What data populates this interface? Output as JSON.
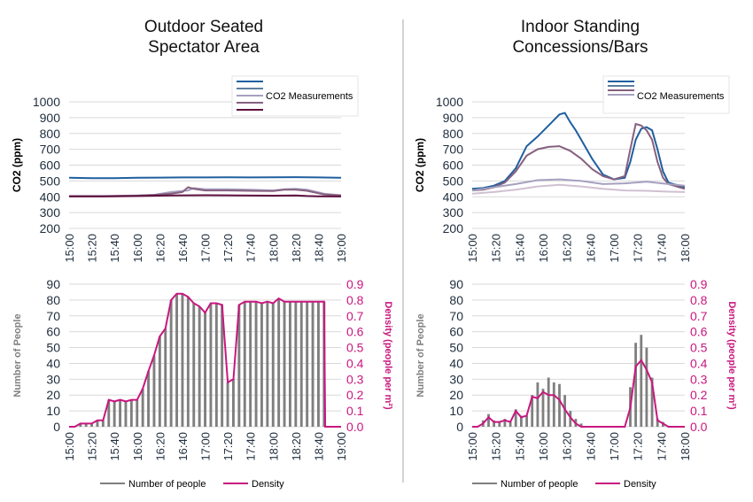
{
  "titles": {
    "left_line1": "Outdoor Seated",
    "left_line2": "Spectator Area",
    "right_line1": "Indoor Standing",
    "right_line2": "Concessions/Bars"
  },
  "colors": {
    "text": "#1f2d3d",
    "grid": "#d9d9d9",
    "bar": "#7f7f7f",
    "density": "#c8177f",
    "axis_gray": "#808080",
    "co2_dark_blue": "#1f5f9f",
    "co2_steel": "#5b7f9f",
    "co2_mauve": "#86607f",
    "co2_lavender": "#a6a0c0",
    "co2_plum": "#5e0f3f",
    "divider": "#a6a6a6"
  },
  "chart_data": [
    {
      "id": "left-co2",
      "type": "line",
      "title": "",
      "ylabel": "CO2 (ppm)",
      "ylim": [
        200,
        1000
      ],
      "yticks": [
        "200",
        "300",
        "400",
        "500",
        "600",
        "700",
        "800",
        "900",
        "1000"
      ],
      "x_ticks": [
        "15:00",
        "15:20",
        "15:40",
        "16:00",
        "16:20",
        "16:40",
        "17:00",
        "17:20",
        "17:40",
        "18:00",
        "18:20",
        "18:40",
        "19:00"
      ],
      "xlim": [
        0,
        240
      ],
      "legend": {
        "text": "CO2 Measurements",
        "placement": "top-right"
      },
      "series": [
        {
          "color": "#1f5f9f",
          "x": [
            0,
            20,
            40,
            60,
            80,
            100,
            120,
            140,
            160,
            180,
            200,
            220,
            240
          ],
          "y": [
            520,
            518,
            518,
            520,
            521,
            522,
            522,
            523,
            522,
            523,
            524,
            522,
            520
          ]
        },
        {
          "color": "#a6a0c0",
          "x": [
            0,
            30,
            60,
            75,
            90,
            105,
            110,
            120,
            140,
            160,
            180,
            190,
            200,
            210,
            225,
            240
          ],
          "y": [
            405,
            405,
            408,
            412,
            430,
            440,
            455,
            448,
            448,
            445,
            440,
            448,
            450,
            445,
            420,
            410
          ]
        },
        {
          "color": "#86607f",
          "x": [
            0,
            30,
            60,
            75,
            90,
            100,
            105,
            110,
            120,
            140,
            160,
            180,
            190,
            200,
            210,
            225,
            240
          ],
          "y": [
            404,
            404,
            407,
            412,
            420,
            430,
            460,
            450,
            440,
            440,
            438,
            436,
            445,
            445,
            438,
            415,
            408
          ]
        },
        {
          "color": "#5e0f3f",
          "x": [
            0,
            30,
            60,
            90,
            120,
            150,
            180,
            200,
            210,
            220,
            240
          ],
          "y": [
            402,
            402,
            405,
            408,
            410,
            408,
            407,
            408,
            405,
            403,
            402
          ]
        }
      ]
    },
    {
      "id": "right-co2",
      "type": "line",
      "title": "",
      "ylabel": "CO2 (ppm)",
      "ylim": [
        200,
        1000
      ],
      "yticks": [
        "200",
        "300",
        "400",
        "500",
        "600",
        "700",
        "800",
        "900",
        "1000"
      ],
      "x_ticks": [
        "15:00",
        "15:20",
        "15:40",
        "16:00",
        "16:20",
        "16:40",
        "17:00",
        "17:20",
        "17:40",
        "18:00"
      ],
      "xlim": [
        0,
        195
      ],
      "legend": {
        "text": "CO2 Measurements",
        "placement": "top-right"
      },
      "series": [
        {
          "color": "#1f5f9f",
          "x": [
            0,
            10,
            20,
            30,
            40,
            50,
            60,
            70,
            80,
            85,
            90,
            95,
            100,
            110,
            120,
            130,
            140,
            145,
            150,
            155,
            160,
            165,
            170,
            175,
            180,
            190,
            195
          ],
          "y": [
            450,
            455,
            470,
            500,
            580,
            720,
            780,
            850,
            920,
            930,
            870,
            820,
            760,
            640,
            540,
            510,
            520,
            620,
            760,
            830,
            840,
            820,
            700,
            560,
            490,
            470,
            460
          ]
        },
        {
          "color": "#86607f",
          "x": [
            0,
            10,
            20,
            30,
            40,
            50,
            60,
            70,
            80,
            90,
            100,
            110,
            120,
            130,
            140,
            145,
            150,
            155,
            160,
            165,
            170,
            175,
            180,
            190,
            195
          ],
          "y": [
            440,
            445,
            460,
            490,
            560,
            660,
            700,
            715,
            720,
            690,
            640,
            575,
            530,
            510,
            530,
            700,
            860,
            850,
            820,
            760,
            620,
            520,
            480,
            460,
            450
          ]
        },
        {
          "color": "#a6a0c0",
          "x": [
            0,
            20,
            40,
            60,
            80,
            100,
            120,
            140,
            160,
            180,
            195
          ],
          "y": [
            440,
            460,
            480,
            505,
            510,
            500,
            480,
            485,
            495,
            480,
            470
          ]
        },
        {
          "color": "#d0c0d0",
          "x": [
            0,
            20,
            40,
            60,
            80,
            100,
            120,
            140,
            160,
            180,
            195
          ],
          "y": [
            420,
            430,
            445,
            465,
            475,
            465,
            450,
            440,
            438,
            432,
            430
          ]
        }
      ]
    },
    {
      "id": "left-people",
      "type": "bar",
      "title": "",
      "ylabel": "Number of People",
      "y2label": "Density (people per m²)",
      "ylim": [
        0,
        90
      ],
      "y2lim": [
        0,
        0.9
      ],
      "yticks": [
        "0",
        "10",
        "20",
        "30",
        "40",
        "50",
        "60",
        "70",
        "80",
        "90"
      ],
      "y2ticks": [
        "0.0",
        "0.1",
        "0.2",
        "0.3",
        "0.4",
        "0.5",
        "0.6",
        "0.7",
        "0.8",
        "0.9"
      ],
      "x_ticks": [
        "15:00",
        "15:20",
        "15:40",
        "16:00",
        "16:20",
        "16:40",
        "17:00",
        "17:20",
        "17:40",
        "18:00",
        "18:20",
        "18:40",
        "19:00"
      ],
      "xlim": [
        0,
        240
      ],
      "bars": {
        "x": [
          5,
          10,
          15,
          20,
          25,
          30,
          35,
          40,
          45,
          50,
          55,
          60,
          65,
          70,
          75,
          80,
          85,
          90,
          95,
          100,
          105,
          110,
          115,
          120,
          125,
          130,
          135,
          140,
          145,
          150,
          155,
          160,
          165,
          170,
          175,
          180,
          185,
          190,
          195,
          200,
          205,
          210,
          215,
          220,
          225
        ],
        "y": [
          0,
          2,
          2,
          2,
          4,
          4,
          17,
          16,
          17,
          16,
          17,
          17,
          24,
          35,
          45,
          57,
          62,
          80,
          84,
          84,
          82,
          78,
          76,
          72,
          78,
          78,
          77,
          28,
          30,
          77,
          79,
          79,
          79,
          78,
          79,
          78,
          81,
          79,
          79,
          79,
          79,
          79,
          79,
          79,
          79
        ]
      },
      "density": {
        "x": [
          0,
          5,
          10,
          15,
          20,
          25,
          30,
          35,
          40,
          45,
          50,
          55,
          60,
          65,
          70,
          75,
          80,
          85,
          90,
          95,
          100,
          105,
          110,
          115,
          120,
          125,
          130,
          135,
          140,
          145,
          150,
          155,
          160,
          165,
          170,
          175,
          180,
          185,
          190,
          195,
          200,
          205,
          210,
          215,
          220,
          225,
          226,
          240
        ],
        "y": [
          0,
          0,
          0.02,
          0.02,
          0.02,
          0.04,
          0.04,
          0.17,
          0.16,
          0.17,
          0.16,
          0.17,
          0.17,
          0.24,
          0.35,
          0.45,
          0.57,
          0.62,
          0.8,
          0.84,
          0.84,
          0.82,
          0.78,
          0.76,
          0.72,
          0.78,
          0.78,
          0.77,
          0.28,
          0.3,
          0.77,
          0.79,
          0.79,
          0.79,
          0.78,
          0.79,
          0.78,
          0.81,
          0.79,
          0.79,
          0.79,
          0.79,
          0.79,
          0.79,
          0.79,
          0.79,
          0,
          0
        ]
      },
      "legend": [
        "Number of people",
        "Density"
      ]
    },
    {
      "id": "right-people",
      "type": "bar",
      "title": "",
      "ylabel": "Number of People",
      "y2label": "Density (people per m²)",
      "ylim": [
        0,
        90
      ],
      "y2lim": [
        0,
        0.9
      ],
      "yticks": [
        "0",
        "10",
        "20",
        "30",
        "40",
        "50",
        "60",
        "70",
        "80",
        "90"
      ],
      "y2ticks": [
        "0.0",
        "0.1",
        "0.2",
        "0.3",
        "0.4",
        "0.5",
        "0.6",
        "0.7",
        "0.8",
        "0.9"
      ],
      "x_ticks": [
        "15:00",
        "15:20",
        "15:40",
        "16:00",
        "16:20",
        "16:40",
        "17:00",
        "17:20",
        "17:40",
        "18:00"
      ],
      "xlim": [
        0,
        195
      ],
      "bars": {
        "x": [
          10,
          15,
          20,
          25,
          30,
          35,
          40,
          45,
          50,
          55,
          60,
          65,
          70,
          75,
          80,
          85,
          90,
          95,
          100,
          105,
          145,
          150,
          155,
          160,
          165,
          170,
          175,
          180
        ],
        "y": [
          4,
          8,
          4,
          3,
          5,
          3,
          11,
          7,
          7,
          20,
          28,
          24,
          31,
          28,
          27,
          20,
          10,
          5,
          2,
          0,
          25,
          53,
          58,
          50,
          31,
          5,
          3,
          0
        ],
        "extra": []
      },
      "density": {
        "x": [
          0,
          5,
          10,
          15,
          20,
          25,
          30,
          35,
          40,
          45,
          50,
          55,
          60,
          65,
          70,
          75,
          80,
          85,
          90,
          95,
          100,
          105,
          110,
          120,
          130,
          140,
          145,
          150,
          155,
          160,
          165,
          170,
          175,
          180,
          195
        ],
        "y": [
          0,
          0,
          0.02,
          0.06,
          0.03,
          0.03,
          0.04,
          0.03,
          0.1,
          0.06,
          0.07,
          0.19,
          0.18,
          0.22,
          0.2,
          0.2,
          0.17,
          0.11,
          0.06,
          0.02,
          0,
          0,
          0,
          0,
          0,
          0,
          0.12,
          0.38,
          0.42,
          0.36,
          0.28,
          0.04,
          0.02,
          0,
          0
        ]
      },
      "legend": [
        "Number of people",
        "Density"
      ]
    }
  ]
}
